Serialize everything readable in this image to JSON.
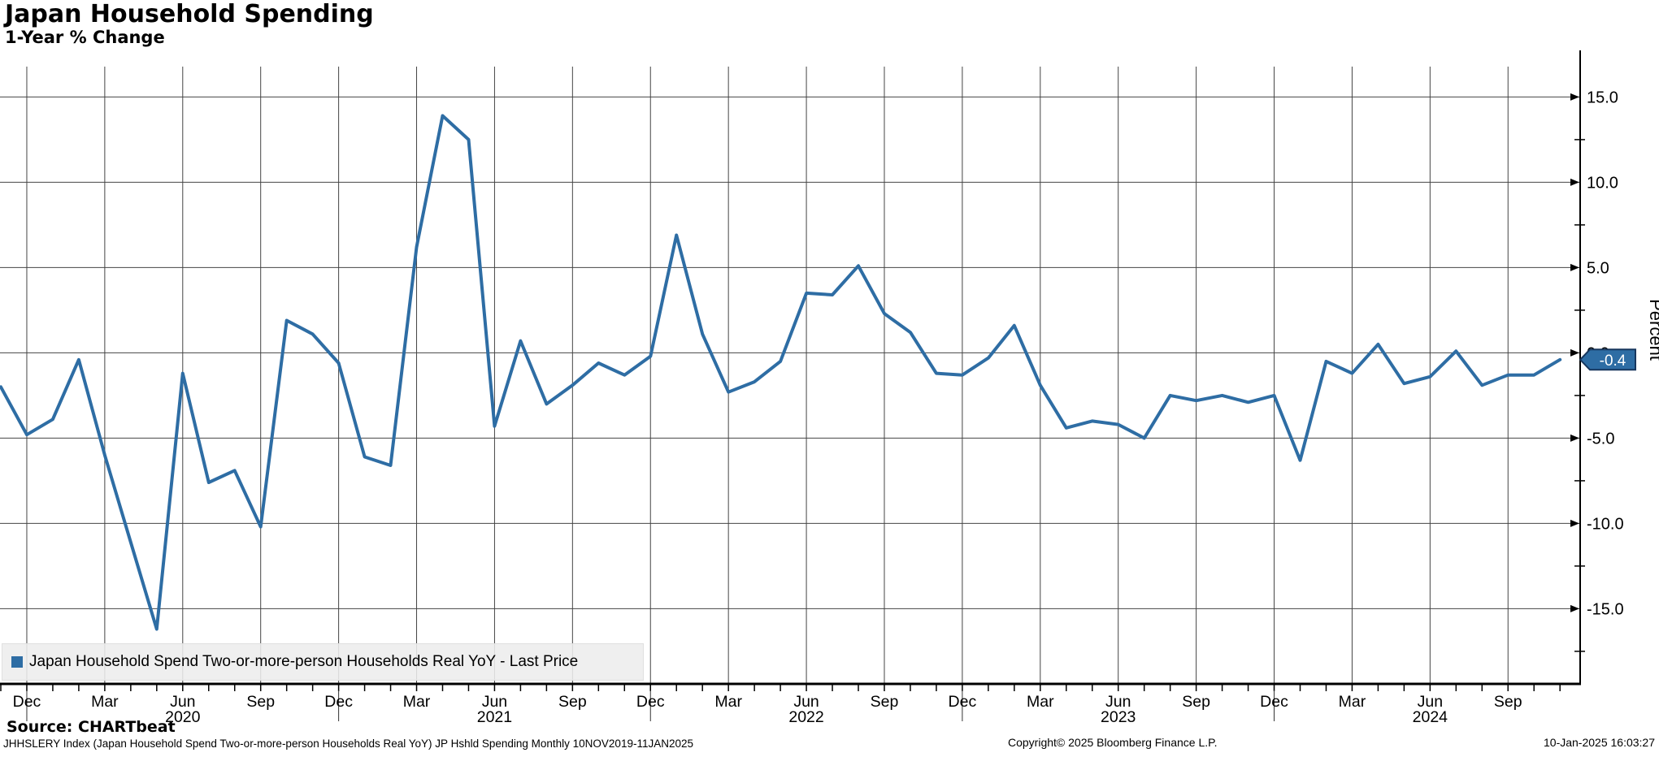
{
  "header": {
    "title": "Japan Household Spending",
    "subtitle": "1-Year % Change"
  },
  "legend": {
    "marker_color": "#2e6da4",
    "label": "Japan Household Spend Two-or-more-person Households Real YoY - Last Price"
  },
  "axis": {
    "y_title": "Percent",
    "last_price_label": "-0.4",
    "tag_color": "#2e6da4",
    "tag_border_color": "#17375e"
  },
  "footer": {
    "source": "Source: CHARTbeat",
    "description": "JHHSLERY Index (Japan Household Spend Two-or-more-person Households Real YoY) JP Hshld Spending  Monthly 10NOV2019-11JAN2025",
    "copyright": "Copyright© 2025 Bloomberg Finance L.P.",
    "timestamp": "10-Jan-2025 16:03:27"
  },
  "chart_data": {
    "type": "line",
    "title": "Japan Household Spending",
    "subtitle": "1-Year % Change",
    "ylabel": "Percent",
    "ylim": [
      -19.6,
      17.7
    ],
    "grid": true,
    "legend_position": "bottom-left",
    "line_color": "#2e6da4",
    "grid_color": "#444444",
    "x": [
      "2019-11",
      "2019-12",
      "2020-01",
      "2020-02",
      "2020-03",
      "2020-04",
      "2020-05",
      "2020-06",
      "2020-07",
      "2020-08",
      "2020-09",
      "2020-10",
      "2020-11",
      "2020-12",
      "2021-01",
      "2021-02",
      "2021-03",
      "2021-04",
      "2021-05",
      "2021-06",
      "2021-07",
      "2021-08",
      "2021-09",
      "2021-10",
      "2021-11",
      "2021-12",
      "2022-01",
      "2022-02",
      "2022-03",
      "2022-04",
      "2022-05",
      "2022-06",
      "2022-07",
      "2022-08",
      "2022-09",
      "2022-10",
      "2022-11",
      "2022-12",
      "2023-01",
      "2023-02",
      "2023-03",
      "2023-04",
      "2023-05",
      "2023-06",
      "2023-07",
      "2023-08",
      "2023-09",
      "2023-10",
      "2023-11",
      "2023-12",
      "2024-01",
      "2024-02",
      "2024-03",
      "2024-04",
      "2024-05",
      "2024-06",
      "2024-07",
      "2024-08",
      "2024-09",
      "2024-10",
      "2024-11"
    ],
    "series": [
      {
        "name": "Japan Household Spend Two-or-more-person Households Real YoY - Last Price",
        "values": [
          -2.0,
          -4.8,
          -3.9,
          -0.4,
          -6.0,
          -11.1,
          -16.2,
          -1.2,
          -7.6,
          -6.9,
          -10.2,
          1.9,
          1.1,
          -0.6,
          -6.1,
          -6.6,
          6.2,
          13.9,
          12.5,
          -4.3,
          0.7,
          -3.0,
          -1.9,
          -0.6,
          -1.3,
          -0.2,
          6.9,
          1.1,
          -2.3,
          -1.7,
          -0.5,
          3.5,
          3.4,
          5.1,
          2.3,
          1.2,
          -1.2,
          -1.3,
          -0.3,
          1.6,
          -1.9,
          -4.4,
          -4.0,
          -4.2,
          -5.0,
          -2.5,
          -2.8,
          -2.5,
          -2.9,
          -2.5,
          -6.3,
          -0.5,
          -1.2,
          0.5,
          -1.8,
          -1.4,
          0.1,
          -1.9,
          -1.3,
          -1.3,
          -0.4
        ]
      }
    ],
    "last_price": -0.4,
    "yticks": [
      {
        "value": 15,
        "label": "15.0"
      },
      {
        "value": 10,
        "label": "10.0"
      },
      {
        "value": 5,
        "label": "5.0"
      },
      {
        "value": 0,
        "label": "0.0"
      },
      {
        "value": -5,
        "label": "-5.0"
      },
      {
        "value": -10,
        "label": "-10.0"
      },
      {
        "value": -15,
        "label": "-15.0"
      }
    ],
    "y_minor_ticks": [
      12.5,
      7.5,
      2.5,
      -2.5,
      -7.5,
      -12.5,
      -17.5
    ],
    "x_ticks": [
      {
        "i": 1,
        "label": "Dec"
      },
      {
        "i": 4,
        "label": "Mar"
      },
      {
        "i": 7,
        "label": "Jun"
      },
      {
        "i": 10,
        "label": "Sep"
      },
      {
        "i": 13,
        "label": "Dec"
      },
      {
        "i": 16,
        "label": "Mar"
      },
      {
        "i": 19,
        "label": "Jun"
      },
      {
        "i": 22,
        "label": "Sep"
      },
      {
        "i": 25,
        "label": "Dec"
      },
      {
        "i": 28,
        "label": "Mar"
      },
      {
        "i": 31,
        "label": "Jun"
      },
      {
        "i": 34,
        "label": "Sep"
      },
      {
        "i": 37,
        "label": "Dec"
      },
      {
        "i": 40,
        "label": "Mar"
      },
      {
        "i": 43,
        "label": "Jun"
      },
      {
        "i": 46,
        "label": "Sep"
      },
      {
        "i": 49,
        "label": "Dec"
      },
      {
        "i": 52,
        "label": "Mar"
      },
      {
        "i": 55,
        "label": "Jun"
      },
      {
        "i": 58,
        "label": "Sep"
      }
    ],
    "year_labels": [
      {
        "i": 7,
        "label": "2020"
      },
      {
        "i": 19,
        "label": "2021"
      },
      {
        "i": 31,
        "label": "2022"
      },
      {
        "i": 43,
        "label": "2023"
      },
      {
        "i": 55,
        "label": "2024"
      }
    ],
    "year_separators": [
      1,
      13,
      25,
      37,
      49
    ]
  }
}
